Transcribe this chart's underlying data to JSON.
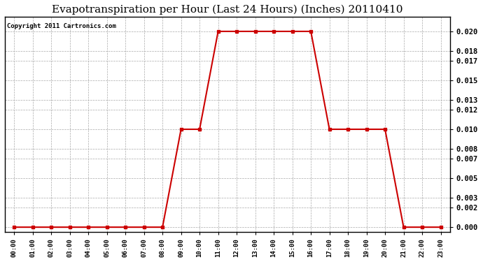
{
  "title": "Evapotranspiration per Hour (Last 24 Hours) (Inches) 20110410",
  "copyright": "Copyright 2011 Cartronics.com",
  "hours": [
    "00:00",
    "01:00",
    "02:00",
    "03:00",
    "04:00",
    "05:00",
    "06:00",
    "07:00",
    "08:00",
    "09:00",
    "10:00",
    "11:00",
    "12:00",
    "13:00",
    "14:00",
    "15:00",
    "16:00",
    "17:00",
    "18:00",
    "19:00",
    "20:00",
    "21:00",
    "22:00",
    "23:00"
  ],
  "values": [
    0.0,
    0.0,
    0.0,
    0.0,
    0.0,
    0.0,
    0.0,
    0.0,
    0.0,
    0.01,
    0.01,
    0.02,
    0.02,
    0.02,
    0.02,
    0.02,
    0.02,
    0.01,
    0.01,
    0.01,
    0.01,
    0.0,
    0.0,
    0.0
  ],
  "line_color": "#cc0000",
  "marker": "s",
  "marker_size": 3,
  "bg_color": "#ffffff",
  "grid_color": "#aaaaaa",
  "yticks": [
    0.0,
    0.002,
    0.003,
    0.005,
    0.007,
    0.008,
    0.01,
    0.012,
    0.013,
    0.015,
    0.017,
    0.018,
    0.02
  ],
  "ylim": [
    -0.0005,
    0.0215
  ],
  "title_fontsize": 11,
  "copyright_fontsize": 6.5,
  "tick_fontsize": 7.5,
  "xtick_fontsize": 6.5
}
